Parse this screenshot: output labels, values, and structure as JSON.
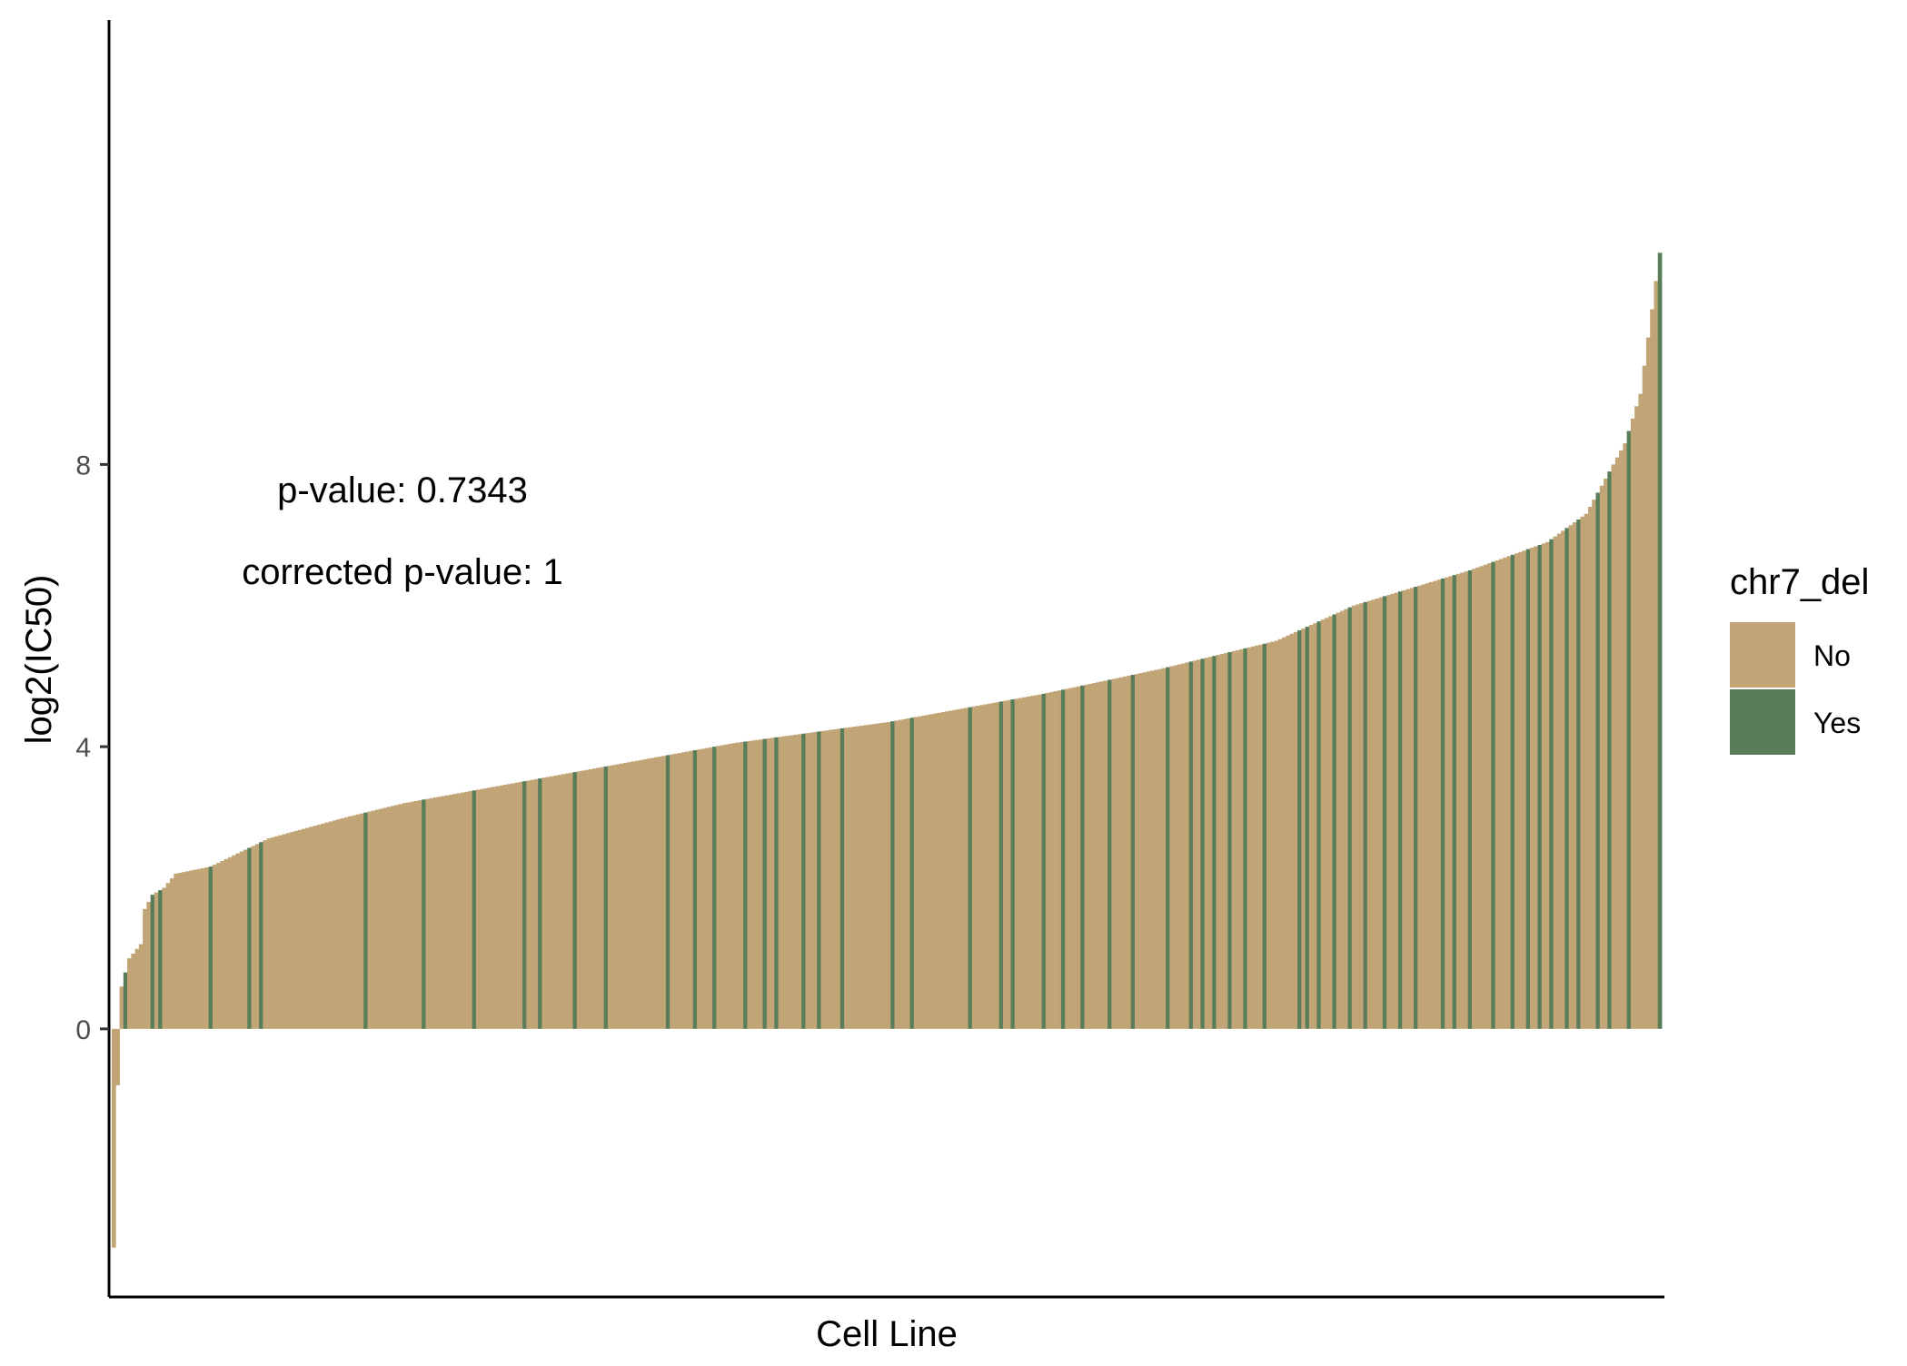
{
  "chart_data": {
    "type": "bar",
    "title": "",
    "xlabel": "Cell Line",
    "ylabel": "log2(IC50)",
    "ylim": [
      -3.8,
      14.3
    ],
    "yticks": [
      0,
      4,
      8
    ],
    "grid": false,
    "annotations": [
      "p-value: 0.7343",
      "corrected p-value: 1"
    ],
    "legend": {
      "title": "chr7_del",
      "position": "right",
      "entries": [
        {
          "label": "No",
          "color": "#C1A577"
        },
        {
          "label": "Yes",
          "color": "#5A7D59"
        }
      ]
    },
    "colors": {
      "No": "#C1A577",
      "Yes": "#5A7D59"
    },
    "n_bars": 400,
    "curve_anchors": [
      [
        0,
        -3.1
      ],
      [
        1,
        -0.8
      ],
      [
        2,
        0.6
      ],
      [
        4,
        1.0
      ],
      [
        7,
        1.2
      ],
      [
        8,
        1.7
      ],
      [
        10,
        1.9
      ],
      [
        13,
        2.0
      ],
      [
        16,
        2.2
      ],
      [
        25,
        2.3
      ],
      [
        40,
        2.7
      ],
      [
        60,
        3.0
      ],
      [
        75,
        3.2
      ],
      [
        100,
        3.45
      ],
      [
        130,
        3.75
      ],
      [
        160,
        4.05
      ],
      [
        200,
        4.35
      ],
      [
        240,
        4.75
      ],
      [
        270,
        5.1
      ],
      [
        300,
        5.5
      ],
      [
        320,
        6.0
      ],
      [
        350,
        6.5
      ],
      [
        370,
        6.9
      ],
      [
        380,
        7.3
      ],
      [
        390,
        8.3
      ],
      [
        394,
        9.0
      ],
      [
        397,
        10.2
      ],
      [
        399,
        11.0
      ]
    ],
    "yes_indices": [
      3,
      10,
      12,
      25,
      35,
      38,
      65,
      80,
      93,
      106,
      110,
      119,
      127,
      143,
      150,
      155,
      163,
      168,
      171,
      178,
      182,
      188,
      201,
      206,
      221,
      229,
      232,
      240,
      245,
      250,
      257,
      263,
      272,
      278,
      281,
      284,
      288,
      292,
      297,
      306,
      308,
      311,
      315,
      319,
      323,
      328,
      332,
      336,
      343,
      346,
      350,
      356,
      361,
      365,
      368,
      371,
      375,
      378,
      383,
      386,
      391,
      399
    ]
  }
}
